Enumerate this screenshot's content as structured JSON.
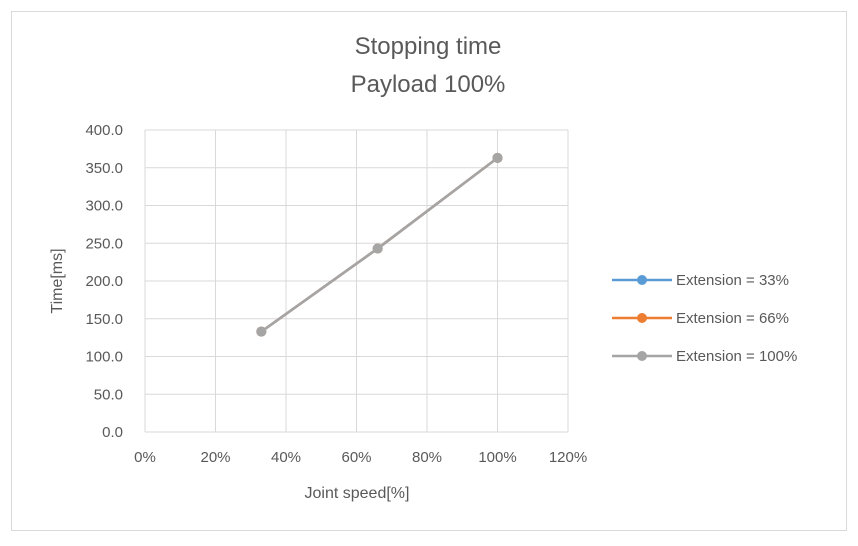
{
  "chart_data": {
    "type": "line",
    "title": "Stopping time",
    "subtitle": "Payload 100%",
    "xlabel": "Joint speed[%]",
    "ylabel": "Time[ms]",
    "xlim": [
      0,
      120
    ],
    "ylim": [
      0,
      400
    ],
    "x_ticks": [
      "0%",
      "20%",
      "40%",
      "60%",
      "80%",
      "100%",
      "120%"
    ],
    "y_ticks": [
      "0.0",
      "50.0",
      "100.0",
      "150.0",
      "200.0",
      "250.0",
      "300.0",
      "350.0",
      "400.0"
    ],
    "grid": true,
    "legend_position": "right",
    "x": [
      33,
      66,
      100
    ],
    "series": [
      {
        "name": "Extension = 33%",
        "color": "#5b9bd5",
        "values": [
          133,
          243,
          363
        ]
      },
      {
        "name": "Extension = 66%",
        "color": "#ed7d31",
        "values": [
          133,
          243,
          363
        ]
      },
      {
        "name": "Extension = 100%",
        "color": "#a5a5a5",
        "values": [
          133,
          243,
          363
        ]
      }
    ]
  }
}
